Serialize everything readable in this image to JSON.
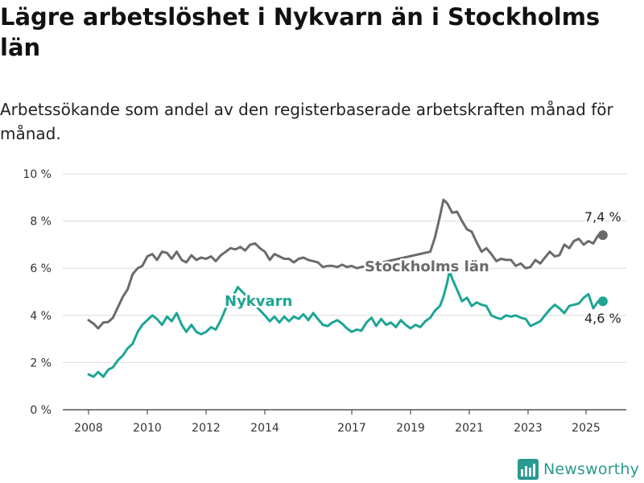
{
  "header": {
    "title": "Lägre arbetslöshet i Nykvarn än i Stockholms län",
    "subtitle": "Arbetssökande som andel av den registerbaserade arbetskraften månad för månad."
  },
  "brand": {
    "name": "Newsworthy",
    "icon": "newsworthy-logo-icon",
    "color": "#2a9a8f"
  },
  "chart_data": {
    "type": "line",
    "title": "Lägre arbetslöshet i Nykvarn än i Stockholms län",
    "subtitle": "Arbetssökande som andel av den registerbaserade arbetskraften månad för månad.",
    "xlabel": "",
    "ylabel": "",
    "x_range": [
      2008.0,
      2025.58
    ],
    "ylim": [
      0,
      10
    ],
    "y_ticks": [
      0,
      2,
      4,
      6,
      8,
      10
    ],
    "y_tick_labels": [
      "0 %",
      "2 %",
      "4 %",
      "6 %",
      "8 %",
      "10 %"
    ],
    "x_ticks": [
      2008,
      2010,
      2012,
      2014,
      2017,
      2019,
      2021,
      2023,
      2025
    ],
    "x_tick_labels": [
      "2008",
      "2010",
      "2012",
      "2014",
      "2017",
      "2019",
      "2021",
      "2023",
      "2025"
    ],
    "grid": true,
    "legend": "inline labels",
    "series": [
      {
        "name": "Stockholms län",
        "color": "#6b6b6e",
        "end_label": "7,4 %",
        "points": [
          [
            2008.0,
            3.8
          ],
          [
            2008.17,
            3.65
          ],
          [
            2008.33,
            3.45
          ],
          [
            2008.5,
            3.7
          ],
          [
            2008.67,
            3.72
          ],
          [
            2008.83,
            3.9
          ],
          [
            2009.0,
            4.35
          ],
          [
            2009.17,
            4.8
          ],
          [
            2009.33,
            5.1
          ],
          [
            2009.5,
            5.75
          ],
          [
            2009.67,
            6.0
          ],
          [
            2009.83,
            6.1
          ],
          [
            2010.0,
            6.5
          ],
          [
            2010.17,
            6.6
          ],
          [
            2010.33,
            6.35
          ],
          [
            2010.5,
            6.7
          ],
          [
            2010.67,
            6.65
          ],
          [
            2010.83,
            6.4
          ],
          [
            2011.0,
            6.7
          ],
          [
            2011.17,
            6.35
          ],
          [
            2011.33,
            6.25
          ],
          [
            2011.5,
            6.55
          ],
          [
            2011.67,
            6.35
          ],
          [
            2011.83,
            6.45
          ],
          [
            2012.0,
            6.4
          ],
          [
            2012.17,
            6.5
          ],
          [
            2012.33,
            6.3
          ],
          [
            2012.5,
            6.55
          ],
          [
            2012.67,
            6.7
          ],
          [
            2012.83,
            6.85
          ],
          [
            2013.0,
            6.8
          ],
          [
            2013.17,
            6.9
          ],
          [
            2013.33,
            6.75
          ],
          [
            2013.5,
            7.0
          ],
          [
            2013.67,
            7.05
          ],
          [
            2013.83,
            6.85
          ],
          [
            2014.0,
            6.7
          ],
          [
            2014.17,
            6.35
          ],
          [
            2014.33,
            6.6
          ],
          [
            2014.5,
            6.5
          ],
          [
            2014.67,
            6.4
          ],
          [
            2014.83,
            6.4
          ],
          [
            2015.0,
            6.25
          ],
          [
            2015.17,
            6.4
          ],
          [
            2015.33,
            6.45
          ],
          [
            2015.5,
            6.35
          ],
          [
            2015.67,
            6.3
          ],
          [
            2015.83,
            6.25
          ],
          [
            2016.0,
            6.05
          ],
          [
            2016.17,
            6.1
          ],
          [
            2016.33,
            6.1
          ],
          [
            2016.5,
            6.05
          ],
          [
            2016.67,
            6.15
          ],
          [
            2016.83,
            6.05
          ],
          [
            2017.0,
            6.1
          ],
          [
            2017.17,
            6.0
          ],
          [
            2017.33,
            6.05
          ],
          [
            2019.67,
            6.7
          ],
          [
            2019.83,
            7.3
          ],
          [
            2020.0,
            8.2
          ],
          [
            2020.12,
            8.9
          ],
          [
            2020.25,
            8.75
          ],
          [
            2020.42,
            8.35
          ],
          [
            2020.58,
            8.4
          ],
          [
            2020.75,
            8.0
          ],
          [
            2020.92,
            7.65
          ],
          [
            2021.08,
            7.55
          ],
          [
            2021.25,
            7.1
          ],
          [
            2021.42,
            6.7
          ],
          [
            2021.58,
            6.85
          ],
          [
            2021.75,
            6.6
          ],
          [
            2021.92,
            6.3
          ],
          [
            2022.08,
            6.4
          ],
          [
            2022.25,
            6.35
          ],
          [
            2022.42,
            6.35
          ],
          [
            2022.58,
            6.1
          ],
          [
            2022.75,
            6.2
          ],
          [
            2022.92,
            6.0
          ],
          [
            2023.08,
            6.05
          ],
          [
            2023.25,
            6.35
          ],
          [
            2023.42,
            6.2
          ],
          [
            2023.58,
            6.45
          ],
          [
            2023.75,
            6.7
          ],
          [
            2023.92,
            6.5
          ],
          [
            2024.08,
            6.55
          ],
          [
            2024.25,
            7.0
          ],
          [
            2024.42,
            6.85
          ],
          [
            2024.58,
            7.15
          ],
          [
            2024.75,
            7.25
          ],
          [
            2024.92,
            7.0
          ],
          [
            2025.08,
            7.15
          ],
          [
            2025.25,
            7.05
          ],
          [
            2025.42,
            7.4
          ],
          [
            2025.58,
            7.4
          ]
        ]
      },
      {
        "name": "Nykvarn",
        "color": "#1ea594",
        "end_label": "4,6 %",
        "points": [
          [
            2008.0,
            1.5
          ],
          [
            2008.17,
            1.4
          ],
          [
            2008.33,
            1.6
          ],
          [
            2008.5,
            1.4
          ],
          [
            2008.67,
            1.7
          ],
          [
            2008.83,
            1.8
          ],
          [
            2009.0,
            2.1
          ],
          [
            2009.17,
            2.3
          ],
          [
            2009.33,
            2.6
          ],
          [
            2009.5,
            2.8
          ],
          [
            2009.67,
            3.3
          ],
          [
            2009.83,
            3.6
          ],
          [
            2010.0,
            3.8
          ],
          [
            2010.17,
            4.0
          ],
          [
            2010.33,
            3.85
          ],
          [
            2010.5,
            3.6
          ],
          [
            2010.67,
            3.95
          ],
          [
            2010.83,
            3.75
          ],
          [
            2011.0,
            4.1
          ],
          [
            2011.17,
            3.6
          ],
          [
            2011.33,
            3.3
          ],
          [
            2011.5,
            3.6
          ],
          [
            2011.67,
            3.3
          ],
          [
            2011.83,
            3.2
          ],
          [
            2012.0,
            3.3
          ],
          [
            2012.17,
            3.5
          ],
          [
            2012.33,
            3.4
          ],
          [
            2012.5,
            3.8
          ],
          [
            2012.67,
            4.3
          ],
          [
            2012.83,
            4.7
          ],
          [
            2013.0,
            5.0
          ],
          [
            2013.08,
            5.2
          ],
          [
            2014.0,
            4.0
          ],
          [
            2014.17,
            3.75
          ],
          [
            2014.33,
            3.95
          ],
          [
            2014.5,
            3.7
          ],
          [
            2014.67,
            3.95
          ],
          [
            2014.83,
            3.75
          ],
          [
            2015.0,
            3.95
          ],
          [
            2015.17,
            3.85
          ],
          [
            2015.33,
            4.05
          ],
          [
            2015.5,
            3.8
          ],
          [
            2015.67,
            4.1
          ],
          [
            2015.83,
            3.85
          ],
          [
            2016.0,
            3.6
          ],
          [
            2016.17,
            3.55
          ],
          [
            2016.33,
            3.7
          ],
          [
            2016.5,
            3.8
          ],
          [
            2016.67,
            3.65
          ],
          [
            2016.83,
            3.45
          ],
          [
            2017.0,
            3.3
          ],
          [
            2017.17,
            3.4
          ],
          [
            2017.33,
            3.35
          ],
          [
            2017.5,
            3.7
          ],
          [
            2017.67,
            3.9
          ],
          [
            2017.83,
            3.55
          ],
          [
            2018.0,
            3.85
          ],
          [
            2018.17,
            3.6
          ],
          [
            2018.33,
            3.7
          ],
          [
            2018.5,
            3.5
          ],
          [
            2018.67,
            3.8
          ],
          [
            2018.83,
            3.6
          ],
          [
            2019.0,
            3.45
          ],
          [
            2019.17,
            3.6
          ],
          [
            2019.33,
            3.5
          ],
          [
            2019.5,
            3.75
          ],
          [
            2019.67,
            3.9
          ],
          [
            2019.83,
            4.2
          ],
          [
            2020.0,
            4.4
          ],
          [
            2020.12,
            4.8
          ],
          [
            2020.25,
            5.4
          ],
          [
            2020.33,
            5.9
          ],
          [
            2020.42,
            5.55
          ],
          [
            2020.58,
            5.1
          ],
          [
            2020.75,
            4.6
          ],
          [
            2020.92,
            4.75
          ],
          [
            2021.08,
            4.4
          ],
          [
            2021.25,
            4.55
          ],
          [
            2021.42,
            4.45
          ],
          [
            2021.58,
            4.4
          ],
          [
            2021.75,
            4.0
          ],
          [
            2021.92,
            3.9
          ],
          [
            2022.08,
            3.85
          ],
          [
            2022.25,
            4.0
          ],
          [
            2022.42,
            3.95
          ],
          [
            2022.58,
            4.0
          ],
          [
            2022.75,
            3.9
          ],
          [
            2022.92,
            3.85
          ],
          [
            2023.08,
            3.55
          ],
          [
            2023.25,
            3.65
          ],
          [
            2023.42,
            3.75
          ],
          [
            2023.58,
            4.0
          ],
          [
            2023.75,
            4.25
          ],
          [
            2023.92,
            4.45
          ],
          [
            2024.08,
            4.3
          ],
          [
            2024.25,
            4.1
          ],
          [
            2024.42,
            4.4
          ],
          [
            2024.58,
            4.45
          ],
          [
            2024.75,
            4.5
          ],
          [
            2024.92,
            4.75
          ],
          [
            2025.08,
            4.9
          ],
          [
            2025.25,
            4.3
          ],
          [
            2025.42,
            4.6
          ],
          [
            2025.58,
            4.6
          ]
        ]
      }
    ]
  }
}
